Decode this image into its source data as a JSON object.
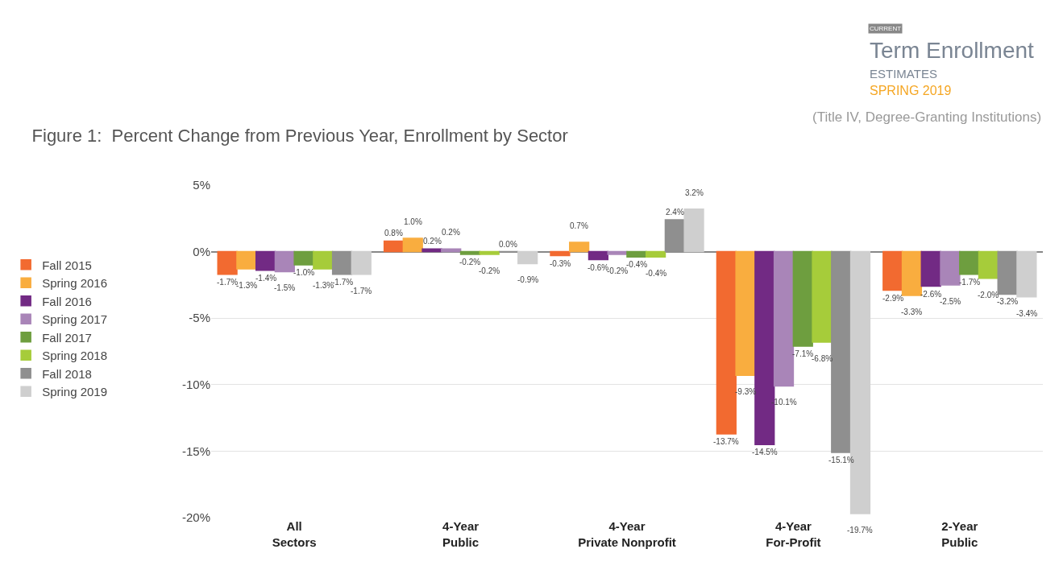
{
  "chart_data": {
    "type": "bar",
    "title": "Figure 1:  Percent Change from Previous Year, Enrollment by Sector",
    "subtitle": "(Title IV, Degree-Granting Institutions)",
    "annotations": [
      "CURRENT",
      "Term Enrollment",
      "ESTIMATES",
      "SPRING 2019"
    ],
    "categories": [
      "All\nSectors",
      "4-Year\nPublic",
      "4-Year\nPrivate Nonprofit",
      "4-Year\nFor-Profit",
      "2-Year\nPublic"
    ],
    "series": [
      {
        "name": "Fall 2015",
        "color": "#f26a30",
        "values": [
          -1.7,
          0.8,
          -0.3,
          -13.7,
          -2.9
        ],
        "value_labels": [
          "-1.7%",
          "0.8%",
          "-0.3%",
          "-13.7%",
          "-2.9%"
        ]
      },
      {
        "name": "Spring 2016",
        "color": "#f9ad3f",
        "values": [
          -1.3,
          1.0,
          0.7,
          -9.3,
          -3.3
        ],
        "value_labels": [
          "-1.3%",
          "1.0%",
          "0.7%",
          "-9.3%",
          "-3.3%"
        ]
      },
      {
        "name": "Fall 2016",
        "color": "#722a84",
        "values": [
          -1.4,
          0.2,
          -0.6,
          -14.5,
          -2.6
        ],
        "value_labels": [
          "-1.4%",
          "0.2%",
          "-0.6%",
          "-14.5%",
          "-2.6%"
        ]
      },
      {
        "name": "Spring 2017",
        "color": "#a985b8",
        "values": [
          -1.5,
          0.2,
          -0.2,
          -10.1,
          -2.5
        ],
        "value_labels": [
          "-1.5%",
          "0.2%",
          "-0.2%",
          "-10.1%",
          "-2.5%"
        ]
      },
      {
        "name": "Fall 2017",
        "color": "#6e9e3f",
        "values": [
          -1.0,
          -0.2,
          -0.4,
          -7.1,
          -1.7
        ],
        "value_labels": [
          "-1.0%",
          "-0.2%",
          "-0.4%",
          "-7.1%",
          "-1.7%"
        ]
      },
      {
        "name": "Spring 2018",
        "color": "#a6cc3a",
        "values": [
          -1.3,
          -0.2,
          -0.4,
          -6.8,
          -2.0
        ],
        "value_labels": [
          "-1.3%",
          "-0.2%",
          "-0.4%",
          "-6.8%",
          "-2.0%"
        ]
      },
      {
        "name": "Fall 2018",
        "color": "#8f8f8f",
        "values": [
          -1.7,
          0.0,
          2.4,
          -15.1,
          -3.2
        ],
        "value_labels": [
          "-1.7%",
          "0.0%",
          "2.4%",
          "-15.1%",
          "-3.2%"
        ]
      },
      {
        "name": "Spring 2019",
        "color": "#cfcfcf",
        "values": [
          -1.7,
          -0.9,
          3.2,
          -19.7,
          -3.4
        ],
        "value_labels": [
          "-1.7%",
          "-0.9%",
          "3.2%",
          "-19.7%",
          "-3.4%"
        ]
      }
    ],
    "ylim": [
      -20,
      5
    ],
    "yticks": [
      {
        "value": 5,
        "label": "5%"
      },
      {
        "value": 0,
        "label": "0%"
      },
      {
        "value": -5,
        "label": "-5%"
      },
      {
        "value": -10,
        "label": "-10%"
      },
      {
        "value": -15,
        "label": "-15%"
      },
      {
        "value": -20,
        "label": "-20%"
      }
    ],
    "grid": "y",
    "legend": "left"
  }
}
